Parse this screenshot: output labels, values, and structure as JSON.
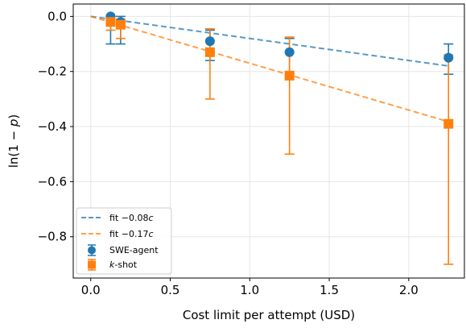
{
  "chart_data": {
    "type": "scatter",
    "xlabel": "Cost limit per attempt (USD)",
    "ylabel_parts": {
      "prefix": "ln(1 ",
      "minus": "−",
      "var": "p",
      "suffix": ")"
    },
    "xlim": [
      -0.11,
      2.35
    ],
    "ylim": [
      -0.95,
      0.045
    ],
    "xticks": [
      0.0,
      0.5,
      1.0,
      1.5,
      2.0
    ],
    "xtick_labels": [
      "0.0",
      "0.5",
      "1.0",
      "1.5",
      "2.0"
    ],
    "yticks": [
      0.0,
      -0.2,
      -0.4,
      -0.6,
      -0.8
    ],
    "ytick_labels": [
      "0.0",
      "−0.2",
      "−0.4",
      "−0.6",
      "−0.8"
    ],
    "grid": true,
    "legend_position": "lower-left",
    "series": [
      {
        "name": "SWE-agent",
        "marker": "circle",
        "color": "#1f77b4",
        "x": [
          0.125,
          0.188,
          0.75,
          1.25,
          2.25
        ],
        "y": [
          0.0,
          -0.02,
          -0.09,
          -0.13,
          -0.15
        ],
        "err_low": [
          -0.1,
          -0.1,
          -0.16,
          -0.21,
          -0.21
        ],
        "err_high": [
          0.0,
          0.0,
          -0.05,
          -0.08,
          -0.1
        ]
      },
      {
        "name": "k-shot",
        "name_italic": "k",
        "name_rest": "-shot",
        "marker": "square",
        "color": "#ff7f0e",
        "x": [
          0.125,
          0.188,
          0.75,
          1.25,
          2.25
        ],
        "y": [
          -0.02,
          -0.03,
          -0.13,
          -0.215,
          -0.39
        ],
        "err_low": [
          -0.05,
          -0.08,
          -0.3,
          -0.5,
          -0.9
        ],
        "err_high": [
          0.0,
          -0.01,
          -0.045,
          -0.075,
          -0.14
        ]
      }
    ],
    "fits": [
      {
        "legend_prefix": "fit −0.08",
        "legend_var": "c",
        "slope": -0.08,
        "x_range": [
          0.0,
          2.25
        ],
        "color": "#1f77b4"
      },
      {
        "legend_prefix": "fit −0.17",
        "legend_var": "c",
        "slope": -0.17,
        "x_range": [
          0.0,
          2.25
        ],
        "color": "#ff7f0e"
      }
    ]
  }
}
